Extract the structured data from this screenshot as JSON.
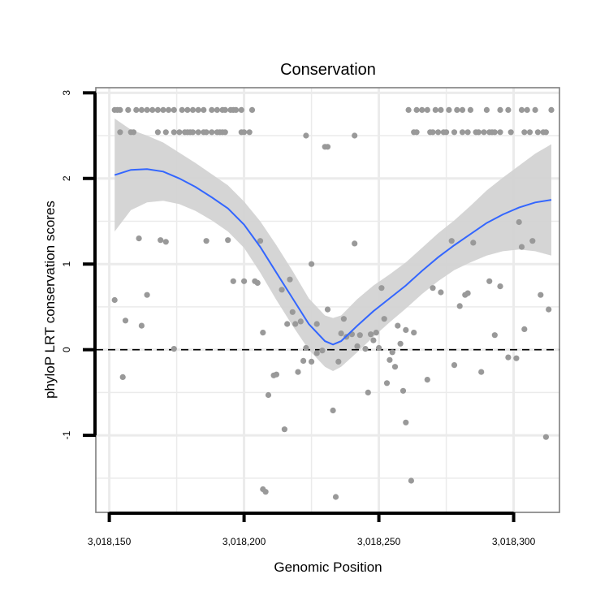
{
  "chart_data": {
    "type": "scatter",
    "title": "Conservation",
    "xlabel": "Genomic Position",
    "ylabel": "phyloP LRT conservation scores",
    "x_ticks": [
      3018150,
      3018200,
      3018250,
      3018300
    ],
    "x_tick_labels": [
      "3,018,150",
      "3,018,200",
      "3,018,250",
      "3,018,300"
    ],
    "y_ticks": [
      -1,
      0,
      1,
      2,
      3
    ],
    "y_tick_labels": [
      "-1",
      "0",
      "1",
      "2",
      "3"
    ],
    "xlim": [
      3018145,
      3018317
    ],
    "ylim": [
      -1.9,
      3.06
    ],
    "grid": true,
    "reference_line": {
      "y": 0,
      "style": "dashed"
    },
    "colors": {
      "points": "#999999",
      "smooth": "#3366ff",
      "band": "#d3d3d3",
      "grid": "#ebebeb",
      "frame": "#7f7f7f"
    },
    "series": [
      {
        "kind": "points",
        "values": [
          [
            3018152,
            2.8
          ],
          [
            3018153,
            2.8
          ],
          [
            3018154,
            2.8
          ],
          [
            3018157,
            2.8
          ],
          [
            3018160,
            2.8
          ],
          [
            3018162,
            2.8
          ],
          [
            3018164,
            2.8
          ],
          [
            3018166,
            2.8
          ],
          [
            3018168,
            2.8
          ],
          [
            3018170,
            2.8
          ],
          [
            3018172,
            2.8
          ],
          [
            3018174,
            2.8
          ],
          [
            3018177,
            2.8
          ],
          [
            3018179,
            2.8
          ],
          [
            3018181,
            2.8
          ],
          [
            3018183,
            2.8
          ],
          [
            3018185,
            2.8
          ],
          [
            3018188,
            2.8
          ],
          [
            3018190,
            2.8
          ],
          [
            3018192,
            2.8
          ],
          [
            3018193,
            2.8
          ],
          [
            3018195,
            2.8
          ],
          [
            3018196,
            2.8
          ],
          [
            3018197,
            2.8
          ],
          [
            3018199,
            2.8
          ],
          [
            3018203,
            2.8
          ],
          [
            3018154,
            2.54
          ],
          [
            3018158,
            2.54
          ],
          [
            3018159,
            2.54
          ],
          [
            3018168,
            2.54
          ],
          [
            3018171,
            2.54
          ],
          [
            3018174,
            2.54
          ],
          [
            3018176,
            2.54
          ],
          [
            3018178,
            2.54
          ],
          [
            3018179,
            2.54
          ],
          [
            3018180,
            2.54
          ],
          [
            3018181,
            2.54
          ],
          [
            3018183,
            2.54
          ],
          [
            3018185,
            2.54
          ],
          [
            3018186,
            2.54
          ],
          [
            3018188,
            2.54
          ],
          [
            3018190,
            2.54
          ],
          [
            3018191,
            2.54
          ],
          [
            3018192,
            2.54
          ],
          [
            3018193,
            2.54
          ],
          [
            3018199,
            2.54
          ],
          [
            3018200,
            2.54
          ],
          [
            3018202,
            2.54
          ],
          [
            3018223,
            2.5
          ],
          [
            3018230,
            2.37
          ],
          [
            3018231,
            2.37
          ],
          [
            3018241,
            2.5
          ],
          [
            3018261,
            2.8
          ],
          [
            3018264,
            2.8
          ],
          [
            3018266,
            2.8
          ],
          [
            3018268,
            2.8
          ],
          [
            3018271,
            2.8
          ],
          [
            3018273,
            2.8
          ],
          [
            3018276,
            2.8
          ],
          [
            3018279,
            2.8
          ],
          [
            3018281,
            2.8
          ],
          [
            3018284,
            2.8
          ],
          [
            3018290,
            2.8
          ],
          [
            3018295,
            2.8
          ],
          [
            3018298,
            2.8
          ],
          [
            3018303,
            2.8
          ],
          [
            3018305,
            2.8
          ],
          [
            3018308,
            2.8
          ],
          [
            3018314,
            2.8
          ],
          [
            3018263,
            2.54
          ],
          [
            3018264,
            2.54
          ],
          [
            3018269,
            2.54
          ],
          [
            3018270,
            2.54
          ],
          [
            3018272,
            2.54
          ],
          [
            3018274,
            2.54
          ],
          [
            3018275,
            2.54
          ],
          [
            3018278,
            2.54
          ],
          [
            3018281,
            2.54
          ],
          [
            3018283,
            2.54
          ],
          [
            3018286,
            2.54
          ],
          [
            3018287,
            2.54
          ],
          [
            3018289,
            2.54
          ],
          [
            3018291,
            2.54
          ],
          [
            3018292,
            2.54
          ],
          [
            3018293,
            2.54
          ],
          [
            3018295,
            2.54
          ],
          [
            3018299,
            2.54
          ],
          [
            3018304,
            2.54
          ],
          [
            3018306,
            2.54
          ],
          [
            3018309,
            2.54
          ],
          [
            3018311,
            2.54
          ],
          [
            3018312,
            2.54
          ],
          [
            3018152,
            0.58
          ],
          [
            3018155,
            -0.32
          ],
          [
            3018156,
            0.34
          ],
          [
            3018161,
            1.3
          ],
          [
            3018162,
            0.28
          ],
          [
            3018164,
            0.64
          ],
          [
            3018169,
            1.28
          ],
          [
            3018171,
            1.26
          ],
          [
            3018174,
            0.01
          ],
          [
            3018186,
            1.27
          ],
          [
            3018194,
            1.28
          ],
          [
            3018196,
            0.8
          ],
          [
            3018200,
            0.8
          ],
          [
            3018204,
            0.8
          ],
          [
            3018205,
            0.78
          ],
          [
            3018206,
            1.27
          ],
          [
            3018207,
            0.2
          ],
          [
            3018207,
            -1.63
          ],
          [
            3018208,
            -1.66
          ],
          [
            3018209,
            -0.53
          ],
          [
            3018211,
            -0.3
          ],
          [
            3018212,
            -0.29
          ],
          [
            3018214,
            0.7
          ],
          [
            3018215,
            -0.93
          ],
          [
            3018216,
            0.3
          ],
          [
            3018217,
            0.82
          ],
          [
            3018218,
            0.44
          ],
          [
            3018219,
            0.3
          ],
          [
            3018220,
            -0.26
          ],
          [
            3018221,
            0.33
          ],
          [
            3018222,
            -0.13
          ],
          [
            3018223,
            0.02
          ],
          [
            3018225,
            1.0
          ],
          [
            3018225,
            -0.14
          ],
          [
            3018227,
            -0.04
          ],
          [
            3018227,
            0.3
          ],
          [
            3018229,
            -0.01
          ],
          [
            3018231,
            0.47
          ],
          [
            3018233,
            -0.71
          ],
          [
            3018234,
            -1.72
          ],
          [
            3018235,
            -0.14
          ],
          [
            3018236,
            0.19
          ],
          [
            3018237,
            0.36
          ],
          [
            3018238,
            0.15
          ],
          [
            3018240,
            0.18
          ],
          [
            3018241,
            1.24
          ],
          [
            3018242,
            0.04
          ],
          [
            3018243,
            0.17
          ],
          [
            3018245,
            0.01
          ],
          [
            3018246,
            -0.5
          ],
          [
            3018247,
            0.18
          ],
          [
            3018248,
            0.11
          ],
          [
            3018249,
            0.2
          ],
          [
            3018250,
            0.02
          ],
          [
            3018251,
            0.72
          ],
          [
            3018252,
            0.36
          ],
          [
            3018253,
            -0.39
          ],
          [
            3018254,
            -0.12
          ],
          [
            3018255,
            -0.03
          ],
          [
            3018256,
            -0.2
          ],
          [
            3018257,
            0.28
          ],
          [
            3018258,
            0.07
          ],
          [
            3018259,
            -0.48
          ],
          [
            3018260,
            -0.85
          ],
          [
            3018260,
            0.23
          ],
          [
            3018262,
            -1.53
          ],
          [
            3018263,
            0.2
          ],
          [
            3018268,
            -0.35
          ],
          [
            3018270,
            0.72
          ],
          [
            3018273,
            0.67
          ],
          [
            3018277,
            1.27
          ],
          [
            3018278,
            -0.18
          ],
          [
            3018280,
            0.51
          ],
          [
            3018282,
            0.64
          ],
          [
            3018283,
            0.66
          ],
          [
            3018285,
            1.25
          ],
          [
            3018288,
            -0.26
          ],
          [
            3018291,
            0.8
          ],
          [
            3018293,
            0.17
          ],
          [
            3018295,
            0.74
          ],
          [
            3018298,
            -0.09
          ],
          [
            3018301,
            -0.1
          ],
          [
            3018302,
            1.49
          ],
          [
            3018303,
            1.2
          ],
          [
            3018304,
            0.24
          ],
          [
            3018307,
            1.27
          ],
          [
            3018310,
            0.64
          ],
          [
            3018312,
            -1.02
          ],
          [
            3018313,
            0.47
          ]
        ]
      },
      {
        "kind": "smooth",
        "x": [
          3018152,
          3018158,
          3018164,
          3018170,
          3018176,
          3018182,
          3018188,
          3018194,
          3018200,
          3018206,
          3018212,
          3018218,
          3018224,
          3018230,
          3018233,
          3018236,
          3018242,
          3018248,
          3018254,
          3018260,
          3018266,
          3018272,
          3018278,
          3018284,
          3018290,
          3018296,
          3018302,
          3018308,
          3018314
        ],
        "y": [
          2.04,
          2.1,
          2.11,
          2.08,
          2.0,
          1.9,
          1.78,
          1.65,
          1.46,
          1.2,
          0.9,
          0.6,
          0.3,
          0.1,
          0.06,
          0.1,
          0.28,
          0.45,
          0.6,
          0.75,
          0.92,
          1.08,
          1.22,
          1.35,
          1.48,
          1.58,
          1.66,
          1.72,
          1.75
        ],
        "lower": [
          1.38,
          1.63,
          1.72,
          1.74,
          1.7,
          1.62,
          1.51,
          1.38,
          1.19,
          0.9,
          0.58,
          0.28,
          0.0,
          -0.2,
          -0.25,
          -0.2,
          -0.03,
          0.15,
          0.32,
          0.48,
          0.65,
          0.8,
          0.93,
          1.02,
          1.1,
          1.15,
          1.17,
          1.15,
          1.1
        ],
        "upper": [
          2.7,
          2.57,
          2.5,
          2.42,
          2.3,
          2.18,
          2.05,
          1.92,
          1.73,
          1.5,
          1.22,
          0.92,
          0.6,
          0.4,
          0.37,
          0.4,
          0.59,
          0.75,
          0.88,
          1.02,
          1.19,
          1.36,
          1.51,
          1.68,
          1.86,
          2.01,
          2.15,
          2.29,
          2.4
        ]
      }
    ]
  }
}
